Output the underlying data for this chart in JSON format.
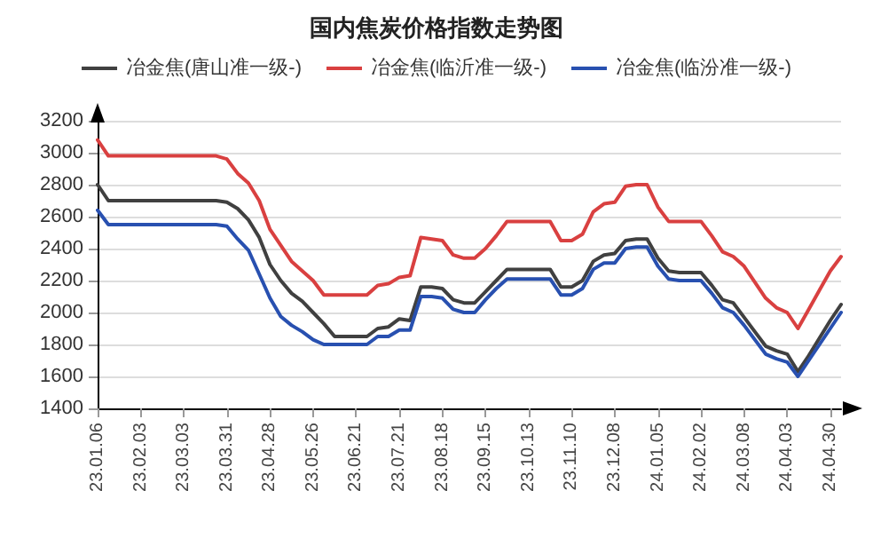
{
  "chart_data": {
    "type": "line",
    "title": "国内焦炭价格指数走势图",
    "categories": [
      "23.01.06",
      null,
      null,
      null,
      "23.02.03",
      null,
      null,
      null,
      "23.03.03",
      null,
      null,
      null,
      "23.03.31",
      null,
      null,
      null,
      "23.04.28",
      null,
      null,
      null,
      "23.05.26",
      null,
      null,
      null,
      "23.06.21",
      null,
      null,
      null,
      "23.07.21",
      null,
      null,
      null,
      "23.08.18",
      null,
      null,
      null,
      "23.09.15",
      null,
      null,
      null,
      "23.10.13",
      null,
      null,
      null,
      "23.11.10",
      null,
      null,
      null,
      "23.12.08",
      null,
      null,
      null,
      "24.01.05",
      null,
      null,
      null,
      "24.02.02",
      null,
      null,
      null,
      "24.03.08",
      null,
      null,
      null,
      "24.04.03",
      null,
      null,
      null,
      "24.04.30",
      null
    ],
    "series": [
      {
        "name": "冶金焦(唐山准一级-)",
        "color": "#404040",
        "values": [
          2800,
          2700,
          2700,
          2700,
          2700,
          2700,
          2700,
          2700,
          2700,
          2700,
          2700,
          2700,
          2690,
          2650,
          2580,
          2470,
          2300,
          2200,
          2120,
          2070,
          2000,
          1930,
          1850,
          1850,
          1850,
          1850,
          1900,
          1910,
          1960,
          1950,
          2160,
          2160,
          2150,
          2080,
          2060,
          2060,
          2130,
          2200,
          2270,
          2270,
          2270,
          2270,
          2270,
          2160,
          2160,
          2200,
          2320,
          2360,
          2370,
          2450,
          2460,
          2460,
          2340,
          2260,
          2250,
          2250,
          2250,
          2170,
          2080,
          2060,
          1970,
          1880,
          1790,
          1760,
          1740,
          1630,
          1730,
          1840,
          1950,
          2050
        ]
      },
      {
        "name": "冶金焦(临沂准一级-)",
        "color": "#d94040",
        "values": [
          3080,
          2980,
          2980,
          2980,
          2980,
          2980,
          2980,
          2980,
          2980,
          2980,
          2980,
          2980,
          2960,
          2870,
          2810,
          2700,
          2520,
          2420,
          2320,
          2260,
          2200,
          2110,
          2110,
          2110,
          2110,
          2110,
          2170,
          2180,
          2220,
          2230,
          2470,
          2460,
          2450,
          2360,
          2340,
          2340,
          2400,
          2480,
          2570,
          2570,
          2570,
          2570,
          2570,
          2450,
          2450,
          2490,
          2630,
          2680,
          2690,
          2790,
          2800,
          2800,
          2660,
          2570,
          2570,
          2570,
          2570,
          2480,
          2380,
          2350,
          2290,
          2190,
          2090,
          2030,
          2000,
          1900,
          2020,
          2140,
          2260,
          2350
        ]
      },
      {
        "name": "冶金焦(临汾准一级-)",
        "color": "#2850b0",
        "values": [
          2640,
          2550,
          2550,
          2550,
          2550,
          2550,
          2550,
          2550,
          2550,
          2550,
          2550,
          2550,
          2540,
          2460,
          2390,
          2240,
          2090,
          1975,
          1920,
          1880,
          1830,
          1800,
          1800,
          1800,
          1800,
          1800,
          1850,
          1850,
          1890,
          1890,
          2100,
          2100,
          2090,
          2020,
          2000,
          2000,
          2080,
          2150,
          2210,
          2210,
          2210,
          2210,
          2210,
          2110,
          2110,
          2150,
          2270,
          2310,
          2310,
          2400,
          2410,
          2410,
          2290,
          2210,
          2200,
          2200,
          2200,
          2120,
          2030,
          2000,
          1920,
          1830,
          1740,
          1710,
          1690,
          1600,
          1700,
          1800,
          1900,
          2000
        ]
      }
    ],
    "ylim": [
      1400,
      3200
    ],
    "yticks": [
      1400,
      1600,
      1800,
      2000,
      2200,
      2400,
      2600,
      2800,
      3000,
      3200
    ],
    "grid": "y",
    "legend": "top",
    "marker": "none",
    "line_style": "solid"
  }
}
